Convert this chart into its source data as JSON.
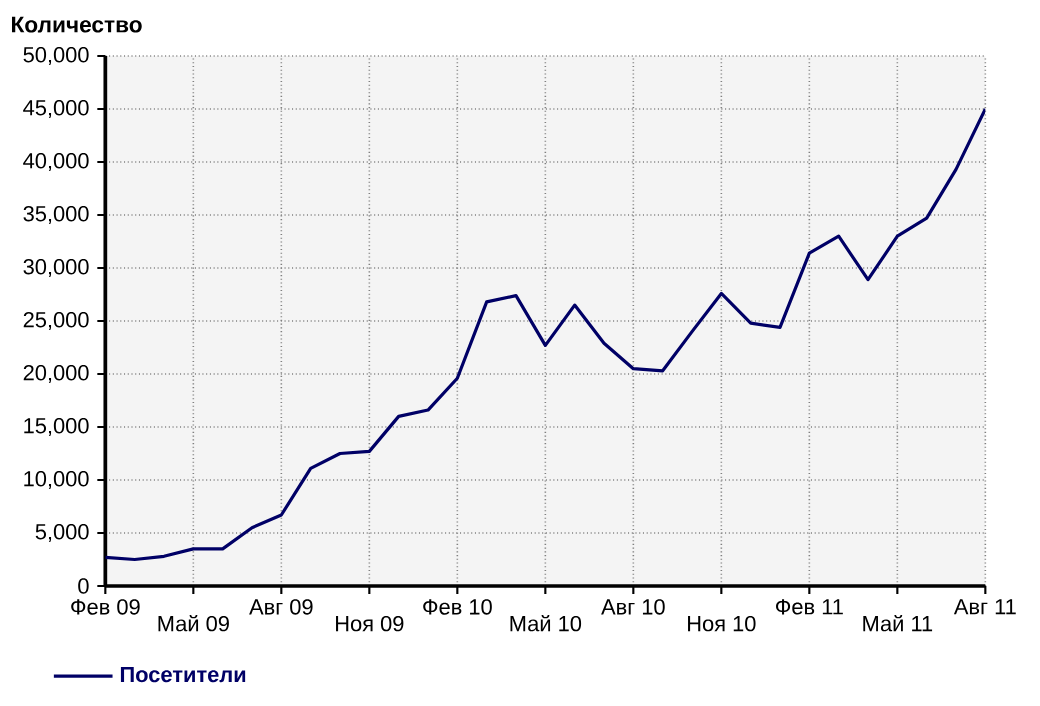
{
  "chart_data": {
    "type": "line",
    "ylabel": "Количество",
    "categories": [
      "Фев 09",
      null,
      null,
      "Май 09",
      null,
      null,
      "Авг 09",
      null,
      null,
      "Ноя 09",
      null,
      null,
      "Фев 10",
      null,
      null,
      "Май 10",
      null,
      null,
      "Авг 10",
      null,
      null,
      "Ноя 10",
      null,
      null,
      "Фев 11",
      null,
      null,
      "Май 11",
      null,
      null,
      "Авг 11"
    ],
    "series": [
      {
        "name": "Посетители",
        "color": "#000066",
        "values": [
          2700,
          2500,
          2800,
          3500,
          3500,
          5500,
          6700,
          11100,
          12500,
          12700,
          16000,
          16600,
          19600,
          26800,
          27400,
          22700,
          26500,
          22900,
          20500,
          20300,
          24000,
          27600,
          24800,
          24400,
          31400,
          33000,
          28900,
          33000,
          34700,
          39300,
          45000
        ]
      }
    ],
    "ylim": [
      0,
      50000
    ],
    "yticks": [
      0,
      {
        "value": 5000,
        "label": "5,000"
      },
      {
        "value": 10000,
        "label": "10,000"
      },
      {
        "value": 15000,
        "label": "15,000"
      },
      {
        "value": 20000,
        "label": "20,000"
      },
      {
        "value": 25000,
        "label": "25,000"
      },
      {
        "value": 30000,
        "label": "30,000"
      },
      {
        "value": 35000,
        "label": "35,000"
      },
      {
        "value": 40000,
        "label": "40,000"
      },
      {
        "value": 45000,
        "label": "45,000"
      },
      {
        "value": 50000,
        "label": "50,000"
      }
    ],
    "grid": true,
    "legend": "bottom left",
    "line_style": "solid"
  }
}
